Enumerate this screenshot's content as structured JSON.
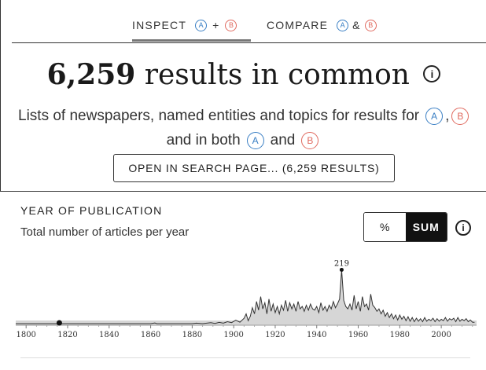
{
  "tabs": {
    "inspect": {
      "label": "INSPECT",
      "a": "A",
      "plus": "+",
      "b": "B"
    },
    "compare": {
      "label": "COMPARE",
      "a": "A",
      "amp": "&",
      "b": "B"
    }
  },
  "headline": {
    "count": "6,259",
    "text": "results in common",
    "info": "i"
  },
  "description": {
    "line1": "Lists of newspapers, named entities and topics for results for",
    "a": "A",
    "b": "B",
    "line2_pre": "and in both",
    "line2_and": "and"
  },
  "open_button": "OPEN IN SEARCH PAGE... (6,259 RESULTS)",
  "section": {
    "title": "YEAR OF PUBLICATION",
    "subtitle": "Total number of articles per year"
  },
  "toggle": {
    "percent": "%",
    "sum": "SUM",
    "active": "SUM"
  },
  "info_icon": "i",
  "colors": {
    "a": "#3a7fc4",
    "b": "#e06a5f",
    "area": "#d6d6d6",
    "line": "#333333"
  },
  "chart_data": {
    "type": "area",
    "x_ticks": [
      "1800",
      "1820",
      "1840",
      "1860",
      "1880",
      "1900",
      "1920",
      "1940",
      "1960",
      "1980",
      "2000"
    ],
    "xlim": [
      1795,
      2017
    ],
    "peak": {
      "year": 1952,
      "value": 219,
      "label": "219"
    },
    "marker_year": 1816,
    "series": [
      {
        "values": [
          [
            1795,
            0
          ],
          [
            1815,
            0
          ],
          [
            1816,
            2
          ],
          [
            1817,
            0
          ],
          [
            1860,
            0
          ],
          [
            1862,
            3
          ],
          [
            1863,
            0
          ],
          [
            1880,
            0
          ],
          [
            1882,
            2
          ],
          [
            1885,
            0
          ],
          [
            1889,
            4
          ],
          [
            1891,
            1
          ],
          [
            1893,
            5
          ],
          [
            1895,
            2
          ],
          [
            1897,
            8
          ],
          [
            1899,
            4
          ],
          [
            1901,
            14
          ],
          [
            1903,
            6
          ],
          [
            1905,
            22
          ],
          [
            1906,
            40
          ],
          [
            1907,
            12
          ],
          [
            1908,
            30
          ],
          [
            1909,
            65
          ],
          [
            1910,
            40
          ],
          [
            1911,
            90
          ],
          [
            1912,
            55
          ],
          [
            1913,
            110
          ],
          [
            1914,
            60
          ],
          [
            1915,
            85
          ],
          [
            1916,
            40
          ],
          [
            1917,
            100
          ],
          [
            1918,
            50
          ],
          [
            1919,
            80
          ],
          [
            1920,
            45
          ],
          [
            1921,
            70
          ],
          [
            1922,
            40
          ],
          [
            1923,
            75
          ],
          [
            1924,
            55
          ],
          [
            1925,
            95
          ],
          [
            1926,
            50
          ],
          [
            1927,
            85
          ],
          [
            1928,
            60
          ],
          [
            1929,
            80
          ],
          [
            1930,
            50
          ],
          [
            1931,
            90
          ],
          [
            1932,
            60
          ],
          [
            1933,
            70
          ],
          [
            1934,
            50
          ],
          [
            1935,
            75
          ],
          [
            1936,
            55
          ],
          [
            1937,
            80
          ],
          [
            1938,
            60
          ],
          [
            1939,
            55
          ],
          [
            1940,
            70
          ],
          [
            1941,
            45
          ],
          [
            1942,
            85
          ],
          [
            1943,
            55
          ],
          [
            1944,
            70
          ],
          [
            1945,
            50
          ],
          [
            1946,
            75
          ],
          [
            1947,
            60
          ],
          [
            1948,
            90
          ],
          [
            1949,
            65
          ],
          [
            1950,
            80
          ],
          [
            1951,
            100
          ],
          [
            1952,
            219
          ],
          [
            1953,
            95
          ],
          [
            1954,
            70
          ],
          [
            1955,
            60
          ],
          [
            1956,
            80
          ],
          [
            1957,
            55
          ],
          [
            1958,
            115
          ],
          [
            1959,
            60
          ],
          [
            1960,
            90
          ],
          [
            1961,
            50
          ],
          [
            1962,
            110
          ],
          [
            1963,
            70
          ],
          [
            1964,
            80
          ],
          [
            1965,
            55
          ],
          [
            1966,
            120
          ],
          [
            1967,
            75
          ],
          [
            1968,
            65
          ],
          [
            1969,
            50
          ],
          [
            1970,
            60
          ],
          [
            1971,
            40
          ],
          [
            1972,
            55
          ],
          [
            1973,
            30
          ],
          [
            1974,
            45
          ],
          [
            1975,
            25
          ],
          [
            1976,
            40
          ],
          [
            1977,
            20
          ],
          [
            1978,
            35
          ],
          [
            1979,
            15
          ],
          [
            1980,
            35
          ],
          [
            1981,
            18
          ],
          [
            1982,
            30
          ],
          [
            1983,
            12
          ],
          [
            1984,
            28
          ],
          [
            1985,
            10
          ],
          [
            1986,
            25
          ],
          [
            1987,
            8
          ],
          [
            1988,
            22
          ],
          [
            1989,
            10
          ],
          [
            1990,
            20
          ],
          [
            1991,
            8
          ],
          [
            1992,
            25
          ],
          [
            1993,
            10
          ],
          [
            1994,
            18
          ],
          [
            1995,
            12
          ],
          [
            1996,
            22
          ],
          [
            1997,
            8
          ],
          [
            1998,
            20
          ],
          [
            1999,
            10
          ],
          [
            2000,
            18
          ],
          [
            2001,
            12
          ],
          [
            2002,
            25
          ],
          [
            2003,
            10
          ],
          [
            2004,
            20
          ],
          [
            2005,
            15
          ],
          [
            2006,
            22
          ],
          [
            2007,
            8
          ],
          [
            2008,
            25
          ],
          [
            2009,
            10
          ],
          [
            2010,
            18
          ],
          [
            2011,
            12
          ],
          [
            2012,
            20
          ],
          [
            2013,
            8
          ],
          [
            2014,
            15
          ],
          [
            2015,
            6
          ],
          [
            2016,
            5
          ]
        ]
      }
    ],
    "ylim": [
      0,
      230
    ]
  }
}
